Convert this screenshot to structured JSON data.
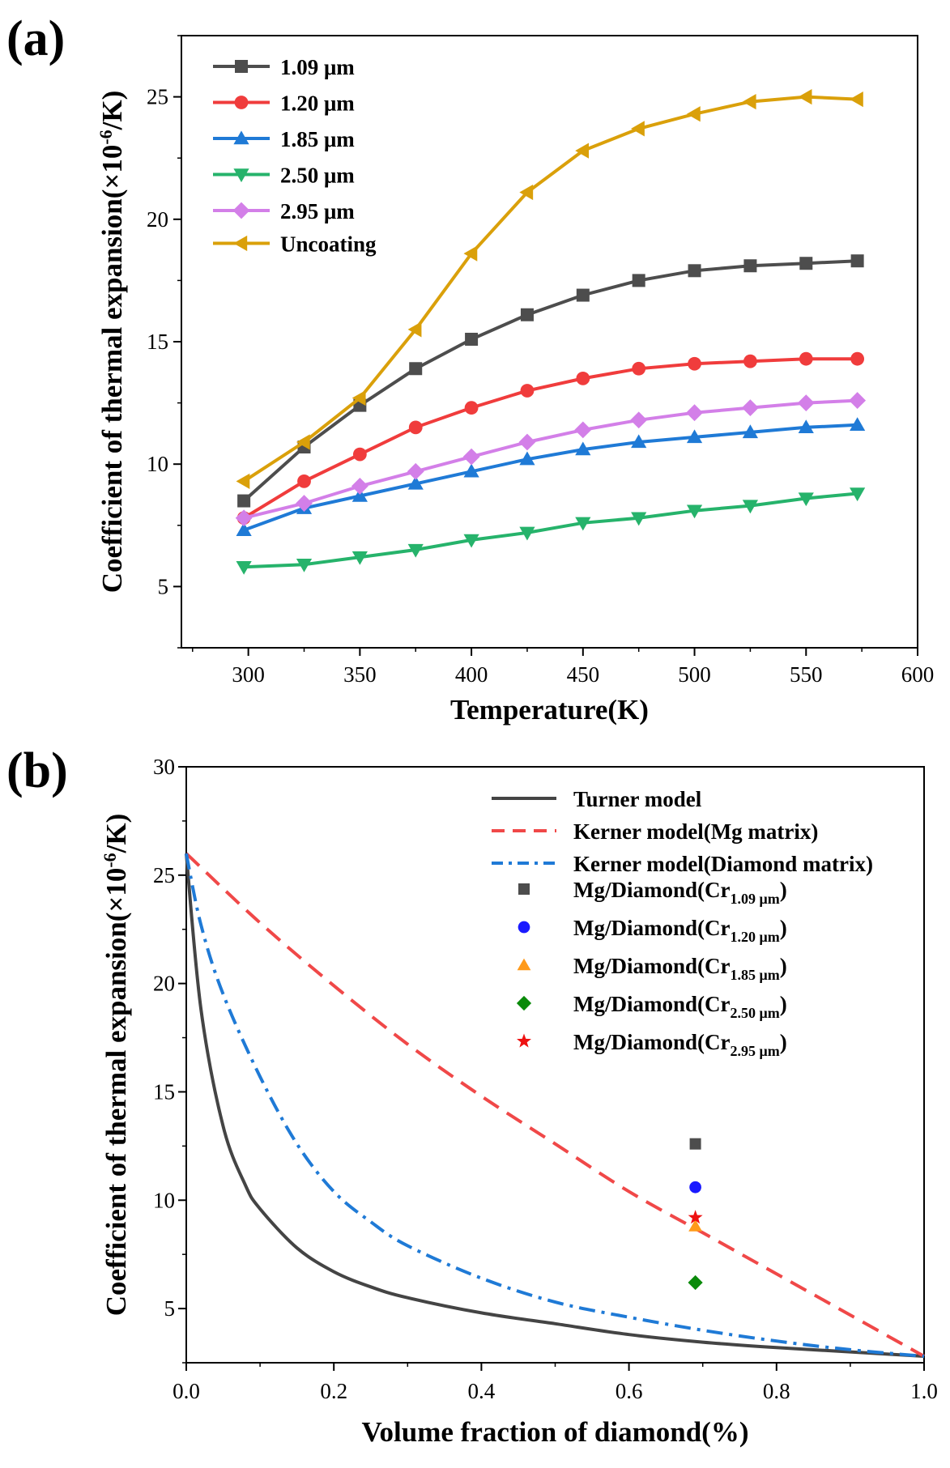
{
  "chart_data": [
    {
      "panel": "(a)",
      "type": "line",
      "xlabel": "Temperature(K)",
      "ylabel_main": "Coefficient of thermal expansion(×10",
      "ylabel_exp": "-6",
      "ylabel_tail": "/K)",
      "xlim": [
        270,
        600
      ],
      "ylim": [
        2.5,
        27.5
      ],
      "x_ticks": [
        300,
        350,
        400,
        450,
        500,
        550,
        600
      ],
      "y_ticks": [
        5,
        10,
        15,
        20,
        25
      ],
      "legend_position": "top-left",
      "x": [
        298,
        325,
        350,
        375,
        400,
        425,
        450,
        475,
        500,
        525,
        550,
        573
      ],
      "series": [
        {
          "name": "1.09 μm",
          "color": "#4d4d4d",
          "marker": "square",
          "values": [
            8.5,
            10.7,
            12.4,
            13.9,
            15.1,
            16.1,
            16.9,
            17.5,
            17.9,
            18.1,
            18.2,
            18.3
          ]
        },
        {
          "name": "1.20 μm",
          "color": "#f03c3c",
          "marker": "circle",
          "values": [
            7.8,
            9.3,
            10.4,
            11.5,
            12.3,
            13.0,
            13.5,
            13.9,
            14.1,
            14.2,
            14.3,
            14.3
          ]
        },
        {
          "name": "1.85 μm",
          "color": "#1f7ad6",
          "marker": "triangle-up",
          "values": [
            7.3,
            8.2,
            8.7,
            9.2,
            9.7,
            10.2,
            10.6,
            10.9,
            11.1,
            11.3,
            11.5,
            11.6
          ]
        },
        {
          "name": "2.50 μm",
          "color": "#26b36b",
          "marker": "triangle-down",
          "values": [
            5.8,
            5.9,
            6.2,
            6.5,
            6.9,
            7.2,
            7.6,
            7.8,
            8.1,
            8.3,
            8.6,
            8.8
          ]
        },
        {
          "name": "2.95 μm",
          "color": "#d37fe8",
          "marker": "diamond",
          "values": [
            7.8,
            8.4,
            9.1,
            9.7,
            10.3,
            10.9,
            11.4,
            11.8,
            12.1,
            12.3,
            12.5,
            12.6
          ]
        },
        {
          "name": "Uncoating",
          "color": "#daa00a",
          "marker": "triangle-left",
          "values": [
            9.3,
            10.9,
            12.7,
            15.5,
            18.6,
            21.1,
            22.8,
            23.7,
            24.3,
            24.8,
            25.0,
            24.9
          ]
        }
      ]
    },
    {
      "panel": "(b)",
      "type": "line",
      "xlabel": "Volume fraction of diamond(%)",
      "ylabel_main": "Coefficient of thermal expansion(×10",
      "ylabel_exp": "-6",
      "ylabel_tail": "/K)",
      "xlim": [
        0.0,
        1.0
      ],
      "ylim": [
        2.5,
        30
      ],
      "x_ticks": [
        "0.0",
        "0.2",
        "0.4",
        "0.6",
        "0.8",
        "1.0"
      ],
      "y_ticks": [
        5,
        10,
        15,
        20,
        25,
        30
      ],
      "legend_position": "top-right",
      "lines": [
        {
          "name": "Turner model",
          "color": "#444444",
          "style": "solid",
          "x": [
            0,
            0.02,
            0.05,
            0.08,
            0.1,
            0.15,
            0.2,
            0.25,
            0.3,
            0.4,
            0.5,
            0.6,
            0.7,
            0.8,
            0.9,
            1.0
          ],
          "values": [
            26.0,
            18.8,
            13.4,
            10.7,
            9.6,
            7.8,
            6.7,
            6.0,
            5.5,
            4.8,
            4.3,
            3.8,
            3.45,
            3.2,
            3.0,
            2.8
          ]
        },
        {
          "name": "Kerner model(Mg matrix)",
          "color": "#f04848",
          "style": "dashed",
          "x": [
            0,
            0.1,
            0.2,
            0.3,
            0.4,
            0.5,
            0.6,
            0.7,
            0.8,
            0.9,
            1.0
          ],
          "values": [
            26.0,
            22.8,
            19.9,
            17.2,
            14.8,
            12.6,
            10.4,
            8.5,
            6.6,
            4.7,
            2.8
          ]
        },
        {
          "name": "Kerner model(Diamond matrix)",
          "color": "#1f7ad6",
          "style": "dashdot",
          "x": [
            0,
            0.02,
            0.05,
            0.1,
            0.15,
            0.2,
            0.25,
            0.3,
            0.4,
            0.5,
            0.6,
            0.7,
            0.8,
            0.9,
            1.0
          ],
          "values": [
            26.0,
            22.7,
            19.5,
            15.7,
            12.6,
            10.4,
            9.0,
            7.9,
            6.4,
            5.3,
            4.6,
            4.0,
            3.5,
            3.1,
            2.8
          ]
        }
      ],
      "points": [
        {
          "name": "Mg/Diamond(Cr",
          "sub": "1.09 μm",
          "color": "#4d4d4d",
          "marker": "square",
          "x": 0.69,
          "value": 12.6
        },
        {
          "name": "Mg/Diamond(Cr",
          "sub": "1.20 μm",
          "color": "#1a1aff",
          "marker": "circle",
          "x": 0.69,
          "value": 10.6
        },
        {
          "name": "Mg/Diamond(Cr",
          "sub": "1.85 μm",
          "color": "#ff9a1a",
          "marker": "triangle-up",
          "x": 0.69,
          "value": 8.8
        },
        {
          "name": "Mg/Diamond(Cr",
          "sub": "2.50 μm",
          "color": "#0a8a0a",
          "marker": "diamond",
          "x": 0.69,
          "value": 6.2
        },
        {
          "name": "Mg/Diamond(Cr",
          "sub": "2.95 μm",
          "color": "#ee1111",
          "marker": "star",
          "x": 0.69,
          "value": 9.2
        }
      ],
      "legend_close": ")"
    }
  ]
}
